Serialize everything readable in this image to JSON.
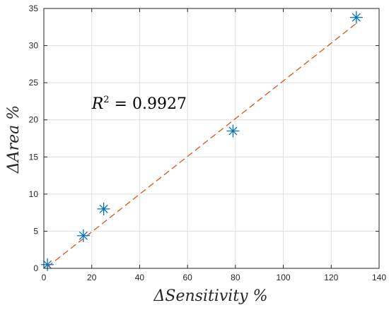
{
  "chart_data": {
    "type": "scatter",
    "xlabel": "ΔSensitivity %",
    "ylabel": "ΔArea %",
    "xlim": [
      0,
      140
    ],
    "ylim": [
      0,
      35
    ],
    "xticks": [
      0,
      20,
      40,
      60,
      80,
      100,
      120,
      140
    ],
    "yticks": [
      0,
      5,
      10,
      15,
      20,
      25,
      30,
      35
    ],
    "grid": true,
    "series": [
      {
        "x": [
          1.5,
          16.5,
          25,
          79,
          130.5
        ],
        "y": [
          0.5,
          4.4,
          8.0,
          18.5,
          33.8
        ],
        "marker": "asterisk",
        "color": "#0072BD"
      }
    ],
    "fit_line": {
      "x": [
        1.5,
        130.5
      ],
      "y": [
        0.2,
        33.0
      ],
      "style": "dashed",
      "color": "#D95319"
    },
    "annotation": {
      "base": "R",
      "exponent": "2",
      "rest": " = 0.9927",
      "x": 20,
      "y": 21.5
    }
  }
}
